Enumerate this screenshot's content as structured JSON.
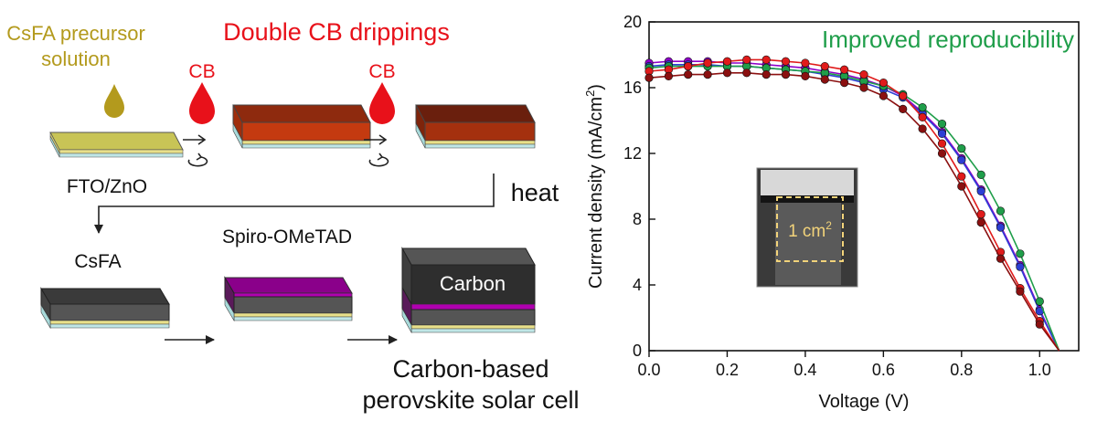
{
  "process": {
    "precursor_line1": "CsFA precursor",
    "precursor_line2": "solution",
    "title": "Double CB drippings",
    "cb": "CB",
    "substrate": "FTO/ZnO",
    "heat": "heat",
    "csfa": "CsFA",
    "spiro": "Spiro-OMeTAD",
    "carbon": "Carbon",
    "result_line1": "Carbon-based",
    "result_line2": "perovskite solar cell"
  },
  "colors": {
    "precursor": "#b39a1d",
    "cb": "#e8111a",
    "improved": "#1f9e4a",
    "film_top": "#c8c456",
    "brown": "#8e2a0e",
    "dark_brown": "#6a1f0d",
    "perovskite": "#3a3a3a",
    "spiro": "#8a008a",
    "carbon": "#2e2e2e"
  },
  "chart_data": {
    "type": "line",
    "title": "Improved reproducibility",
    "xlabel": "Voltage (V)",
    "ylabel": "Current density (mA/cm2)",
    "xlim": [
      0.0,
      1.1
    ],
    "ylim": [
      0,
      20
    ],
    "xticks": [
      "0.0",
      "0.2",
      "0.4",
      "0.6",
      "0.8",
      "1.0"
    ],
    "yticks": [
      "0",
      "4",
      "8",
      "12",
      "16",
      "20"
    ],
    "inset_label": "1 cm2",
    "x": [
      0.0,
      0.05,
      0.1,
      0.15,
      0.2,
      0.25,
      0.3,
      0.35,
      0.4,
      0.45,
      0.5,
      0.55,
      0.6,
      0.65,
      0.7,
      0.75,
      0.8,
      0.85,
      0.9,
      0.95,
      1.0,
      1.05
    ],
    "series": [
      {
        "color": "#8e00c8",
        "values": [
          17.5,
          17.6,
          17.6,
          17.6,
          17.5,
          17.5,
          17.4,
          17.3,
          17.2,
          17.0,
          16.8,
          16.5,
          16.1,
          15.5,
          14.5,
          13.3,
          11.7,
          9.8,
          7.6,
          5.2,
          2.5,
          0.0
        ]
      },
      {
        "color": "#2d3fd4",
        "values": [
          17.3,
          17.4,
          17.4,
          17.4,
          17.3,
          17.3,
          17.2,
          17.1,
          17.0,
          16.8,
          16.6,
          16.3,
          15.9,
          15.4,
          14.4,
          13.2,
          11.6,
          9.7,
          7.5,
          5.1,
          2.4,
          0.0
        ]
      },
      {
        "color": "#1f9e4a",
        "values": [
          17.2,
          17.3,
          17.3,
          17.3,
          17.3,
          17.3,
          17.2,
          17.1,
          17.0,
          16.9,
          16.7,
          16.4,
          16.1,
          15.6,
          14.8,
          13.8,
          12.3,
          10.7,
          8.5,
          5.9,
          3.0,
          0.0
        ]
      },
      {
        "color": "#e01b1b",
        "values": [
          17.0,
          17.1,
          17.3,
          17.5,
          17.6,
          17.7,
          17.7,
          17.6,
          17.5,
          17.3,
          17.1,
          16.8,
          16.3,
          15.5,
          14.2,
          12.6,
          10.6,
          8.3,
          6.0,
          3.8,
          1.8,
          0.0
        ]
      },
      {
        "color": "#8b1010",
        "values": [
          16.6,
          16.7,
          16.8,
          16.8,
          16.9,
          16.9,
          16.8,
          16.8,
          16.7,
          16.5,
          16.3,
          16.0,
          15.5,
          14.7,
          13.5,
          12.0,
          10.0,
          7.8,
          5.6,
          3.6,
          1.6,
          0.0
        ]
      }
    ]
  }
}
